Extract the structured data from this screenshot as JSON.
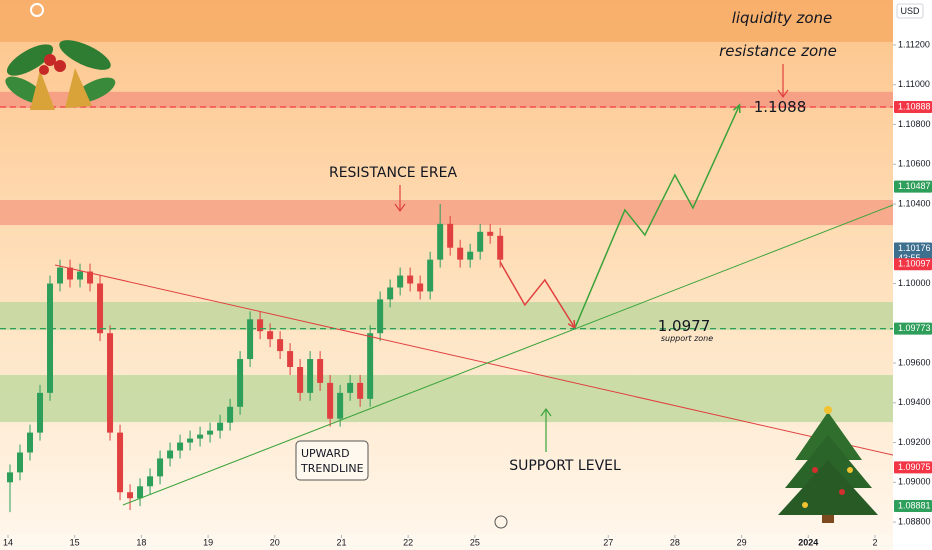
{
  "chart_data": {
    "type": "candlestick",
    "currency": "USD",
    "countdown": "43:55",
    "up_color": "#2e9e5b",
    "down_color": "#e0403f",
    "xlim": [
      -0.12,
      13.27
    ],
    "ylim": [
      1.08735,
      1.11426
    ],
    "xticks": [
      {
        "value": 0,
        "label": "14"
      },
      {
        "value": 1,
        "label": "15"
      },
      {
        "value": 2,
        "label": "18"
      },
      {
        "value": 3,
        "label": "19"
      },
      {
        "value": 4,
        "label": "20"
      },
      {
        "value": 5,
        "label": "21"
      },
      {
        "value": 6,
        "label": "22"
      },
      {
        "value": 7,
        "label": "25"
      },
      {
        "value": 9,
        "label": "27"
      },
      {
        "value": 10,
        "label": "28"
      },
      {
        "value": 11,
        "label": "29"
      },
      {
        "value": 12,
        "label": "2024"
      },
      {
        "value": 13,
        "label": "2"
      }
    ],
    "yticks": [
      {
        "value": 1.112,
        "label": "1.11200"
      },
      {
        "value": 1.11,
        "label": "1.11000"
      },
      {
        "value": 1.108,
        "label": "1.10800"
      },
      {
        "value": 1.106,
        "label": "1.10600"
      },
      {
        "value": 1.104,
        "label": "1.10400"
      },
      {
        "value": 1.1,
        "label": "1.10000"
      },
      {
        "value": 1.096,
        "label": "1.09600"
      },
      {
        "value": 1.094,
        "label": "1.09400"
      },
      {
        "value": 1.092,
        "label": "1.09200"
      },
      {
        "value": 1.09,
        "label": "1.09000"
      },
      {
        "value": 1.088,
        "label": "1.08800"
      }
    ],
    "x": [
      0.03,
      0.18,
      0.33,
      0.48,
      0.63,
      0.78,
      0.93,
      1.08,
      1.23,
      1.38,
      1.53,
      1.68,
      1.83,
      1.98,
      2.13,
      2.28,
      2.43,
      2.58,
      2.73,
      2.88,
      3.03,
      3.18,
      3.33,
      3.48,
      3.63,
      3.78,
      3.93,
      4.08,
      4.23,
      4.38,
      4.53,
      4.68,
      4.83,
      4.98,
      5.13,
      5.28,
      5.43,
      5.58,
      5.73,
      5.88,
      6.03,
      6.18,
      6.33,
      6.48,
      6.63,
      6.78,
      6.93,
      7.08,
      7.23,
      7.38
    ],
    "open": [
      1.09,
      1.0905,
      1.0915,
      1.0925,
      1.0945,
      1.1,
      1.1008,
      1.1002,
      1.1006,
      1.1,
      1.0975,
      1.0925,
      1.0895,
      1.0892,
      1.0898,
      1.0903,
      1.0912,
      1.0916,
      1.092,
      1.0922,
      1.0924,
      1.0926,
      1.093,
      1.0938,
      1.0962,
      1.0982,
      1.0976,
      1.0972,
      1.0966,
      1.0958,
      1.0945,
      1.0962,
      1.095,
      1.0932,
      1.0945,
      1.095,
      1.0942,
      1.0975,
      1.0992,
      1.0998,
      1.1004,
      1.1,
      1.0996,
      1.1012,
      1.103,
      1.1018,
      1.1012,
      1.1016,
      1.1026,
      1.1024
    ],
    "high": [
      1.0909,
      1.0919,
      1.0929,
      1.0949,
      1.1004,
      1.1012,
      1.1012,
      1.101,
      1.101,
      1.1004,
      1.0979,
      1.0929,
      1.0899,
      1.0902,
      1.0907,
      1.0916,
      1.092,
      1.0924,
      1.0926,
      1.0928,
      1.093,
      1.0934,
      1.0942,
      1.0966,
      1.0986,
      1.0986,
      1.098,
      1.0976,
      1.097,
      1.0962,
      1.0966,
      1.0966,
      1.0954,
      1.0949,
      1.0954,
      1.0954,
      1.0979,
      1.0996,
      1.1002,
      1.1008,
      1.1008,
      1.1004,
      1.1016,
      1.104,
      1.1034,
      1.1022,
      1.102,
      1.103,
      1.103,
      1.1028
    ],
    "low": [
      1.0885,
      1.0901,
      1.0911,
      1.0921,
      1.0941,
      1.0996,
      1.0998,
      1.0998,
      1.0996,
      1.0971,
      1.0921,
      1.0891,
      1.0886,
      1.0888,
      1.0894,
      1.0899,
      1.0908,
      1.0912,
      1.0916,
      1.0918,
      1.092,
      1.0922,
      1.0926,
      1.0934,
      1.0958,
      1.0972,
      1.0968,
      1.0962,
      1.0954,
      1.0941,
      1.0941,
      1.0946,
      1.0928,
      1.0928,
      1.0941,
      1.0938,
      1.0938,
      1.0971,
      1.0988,
      1.0994,
      1.0996,
      1.0992,
      1.0992,
      1.1008,
      1.1014,
      1.1008,
      1.1008,
      1.1012,
      1.102,
      1.1008
    ],
    "close": [
      1.0905,
      1.0915,
      1.0925,
      1.0945,
      1.1,
      1.1008,
      1.1002,
      1.1006,
      1.1,
      1.0975,
      1.0925,
      1.0895,
      1.0892,
      1.0898,
      1.0903,
      1.0912,
      1.0916,
      1.092,
      1.0922,
      1.0924,
      1.0926,
      1.093,
      1.0938,
      1.0962,
      1.0982,
      1.0976,
      1.0972,
      1.0966,
      1.0958,
      1.0945,
      1.0962,
      1.095,
      1.0932,
      1.0945,
      1.095,
      1.0942,
      1.0975,
      1.0992,
      1.0998,
      1.1004,
      1.1,
      1.0996,
      1.1012,
      1.103,
      1.1018,
      1.1012,
      1.1016,
      1.1026,
      1.1024,
      1.1012
    ],
    "zones": [
      {
        "name": "liquidity zone",
        "from": 1.11215,
        "to": 1.11426,
        "color": "#f6a862"
      },
      {
        "name": "resistance zone",
        "from": 1.10883,
        "to": 1.10964,
        "color": "#f3917f"
      },
      {
        "name": "RESISTANCE EREA",
        "from": 1.10294,
        "to": 1.1042,
        "color": "#f49a80"
      },
      {
        "name": "support zone",
        "from": 1.09766,
        "to": 1.09907,
        "color": "#b9d79a"
      },
      {
        "name": "SUPPORT LEVEL",
        "from": 1.09303,
        "to": 1.0954,
        "color": "#b9d79a"
      }
    ],
    "drawings": [
      {
        "color": "#e0403f",
        "x": [
          0.705,
          13.27
        ],
        "y": [
          1.10093,
          1.09137
        ]
      },
      {
        "color": "#3aa33a",
        "x": [
          1.724,
          13.27
        ],
        "y": [
          1.08886,
          1.10395
        ]
      },
      {
        "color": "#3aa33a",
        "x": [
          8.5,
          9.25,
          9.55,
          10.0,
          10.27,
          10.97
        ],
        "y": [
          1.09776,
          1.1037,
          1.10244,
          1.10546,
          1.1038,
          1.10898
        ]
      },
      {
        "color": "#e0403f",
        "x": [
          7.38,
          7.75,
          8.05,
          8.5
        ],
        "y": [
          1.10108,
          1.09892,
          1.10018,
          1.09776
        ]
      }
    ],
    "price_labels": [
      {
        "value": 1.10888,
        "color": "#f23645",
        "dashed": true
      },
      {
        "value": 1.10487,
        "color": "#2e9e5b"
      },
      {
        "value": 1.10176,
        "color": "#3d6f8f"
      },
      {
        "value": 1.10097,
        "color": "#f23645"
      },
      {
        "value": 1.09773,
        "color": "#2e9e5b",
        "dashed": true
      },
      {
        "value": 1.09075,
        "color": "#f23645"
      },
      {
        "value": 1.08881,
        "color": "#2e9e5b"
      }
    ],
    "annotations": [
      "1.1088",
      "1.0977",
      "UPWARD",
      "TRENDLINE"
    ]
  }
}
